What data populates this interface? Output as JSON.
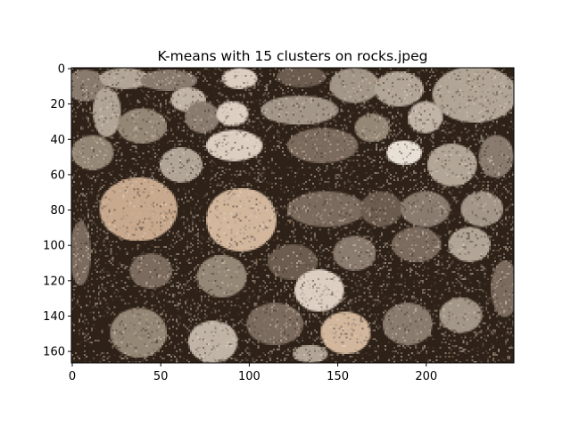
{
  "chart_data": {
    "type": "heatmap",
    "title": "K-means with 15 clusters on rocks.jpeg",
    "xlabel": "",
    "ylabel": "",
    "image_width": 250,
    "image_height": 167,
    "xlim": [
      -0.5,
      249.5
    ],
    "ylim": [
      166.5,
      -0.5
    ],
    "x_ticks": [
      0,
      50,
      100,
      150,
      200
    ],
    "x_tick_labels": [
      "0",
      "50",
      "100",
      "150",
      "200"
    ],
    "y_ticks": [
      0,
      20,
      40,
      60,
      80,
      100,
      120,
      140,
      160
    ],
    "y_tick_labels": [
      "0",
      "20",
      "40",
      "60",
      "80",
      "100",
      "120",
      "140",
      "160"
    ],
    "grid": false,
    "n_clusters": 15,
    "palette": [
      "#2e2218",
      "#3e3128",
      "#4d4034",
      "#5e5145",
      "#6c5c4f",
      "#7b6b5e",
      "#8a7b6f",
      "#948776",
      "#a29688",
      "#b0a596",
      "#bfb4a6",
      "#c9a98e",
      "#d3b79d",
      "#dccfc2",
      "#e8e0d6"
    ],
    "background_index": 0,
    "regions": [
      {
        "name": "rock-top-left",
        "cx": 8,
        "cy": 10,
        "rx": 12,
        "ry": 9,
        "c": 6
      },
      {
        "name": "rock-top-1",
        "cx": 30,
        "cy": 6,
        "rx": 14,
        "ry": 6,
        "c": 9
      },
      {
        "name": "rock-top-2",
        "cx": 55,
        "cy": 7,
        "rx": 16,
        "ry": 6,
        "c": 6
      },
      {
        "name": "rock-top-3",
        "cx": 95,
        "cy": 6,
        "rx": 10,
        "ry": 6,
        "c": 13
      },
      {
        "name": "rock-top-4",
        "cx": 130,
        "cy": 5,
        "rx": 14,
        "ry": 6,
        "c": 4
      },
      {
        "name": "rock-top-5",
        "cx": 160,
        "cy": 10,
        "rx": 14,
        "ry": 10,
        "c": 8
      },
      {
        "name": "rock-top-6",
        "cx": 185,
        "cy": 12,
        "rx": 14,
        "ry": 10,
        "c": 9
      },
      {
        "name": "rock-top-right",
        "cx": 228,
        "cy": 15,
        "rx": 24,
        "ry": 16,
        "c": 9
      },
      {
        "name": "rock-left-long",
        "cx": 20,
        "cy": 25,
        "rx": 8,
        "ry": 14,
        "c": 9
      },
      {
        "name": "rock-l-1",
        "cx": 40,
        "cy": 33,
        "rx": 14,
        "ry": 10,
        "c": 7
      },
      {
        "name": "rock-l-2",
        "cx": 66,
        "cy": 18,
        "rx": 10,
        "ry": 7,
        "c": 10
      },
      {
        "name": "rock-l-3",
        "cx": 74,
        "cy": 28,
        "rx": 10,
        "ry": 9,
        "c": 6
      },
      {
        "name": "rock-light-1",
        "cx": 91,
        "cy": 26,
        "rx": 9,
        "ry": 7,
        "c": 13
      },
      {
        "name": "rock-mid-1",
        "cx": 129,
        "cy": 24,
        "rx": 22,
        "ry": 8,
        "c": 8
      },
      {
        "name": "rock-light-2",
        "cx": 92,
        "cy": 44,
        "rx": 16,
        "ry": 9,
        "c": 13
      },
      {
        "name": "rock-mid-2",
        "cx": 142,
        "cy": 44,
        "rx": 20,
        "ry": 10,
        "c": 5
      },
      {
        "name": "rock-left-lower",
        "cx": 12,
        "cy": 48,
        "rx": 12,
        "ry": 10,
        "c": 7
      },
      {
        "name": "rock-l-4",
        "cx": 62,
        "cy": 55,
        "rx": 12,
        "ry": 10,
        "c": 9
      },
      {
        "name": "rock-r-1",
        "cx": 170,
        "cy": 34,
        "rx": 10,
        "ry": 8,
        "c": 7
      },
      {
        "name": "rock-r-2",
        "cx": 200,
        "cy": 28,
        "rx": 10,
        "ry": 9,
        "c": 10
      },
      {
        "name": "rock-r-3",
        "cx": 188,
        "cy": 48,
        "rx": 10,
        "ry": 7,
        "c": 14
      },
      {
        "name": "rock-r-4",
        "cx": 215,
        "cy": 55,
        "rx": 14,
        "ry": 12,
        "c": 9
      },
      {
        "name": "rock-r-5",
        "cx": 240,
        "cy": 50,
        "rx": 10,
        "ry": 12,
        "c": 6
      },
      {
        "name": "rock-big-tan",
        "cx": 38,
        "cy": 80,
        "rx": 22,
        "ry": 18,
        "c": 11
      },
      {
        "name": "rock-big-tan-2",
        "cx": 96,
        "cy": 86,
        "rx": 20,
        "ry": 18,
        "c": 12
      },
      {
        "name": "rock-center-oval",
        "cx": 144,
        "cy": 80,
        "rx": 22,
        "ry": 10,
        "c": 5
      },
      {
        "name": "rock-r-6",
        "cx": 175,
        "cy": 80,
        "rx": 12,
        "ry": 10,
        "c": 4
      },
      {
        "name": "rock-r-7",
        "cx": 200,
        "cy": 80,
        "rx": 14,
        "ry": 10,
        "c": 6
      },
      {
        "name": "rock-r-8",
        "cx": 232,
        "cy": 80,
        "rx": 12,
        "ry": 10,
        "c": 8
      },
      {
        "name": "rock-left-edge",
        "cx": 5,
        "cy": 105,
        "rx": 6,
        "ry": 18,
        "c": 5
      },
      {
        "name": "rock-lower-1",
        "cx": 45,
        "cy": 115,
        "rx": 12,
        "ry": 10,
        "c": 5
      },
      {
        "name": "rock-lower-2",
        "cx": 85,
        "cy": 118,
        "rx": 14,
        "ry": 12,
        "c": 7
      },
      {
        "name": "rock-lower-3",
        "cx": 125,
        "cy": 110,
        "rx": 14,
        "ry": 10,
        "c": 4
      },
      {
        "name": "rock-lower-4",
        "cx": 160,
        "cy": 105,
        "rx": 12,
        "ry": 10,
        "c": 6
      },
      {
        "name": "rock-lower-5",
        "cx": 195,
        "cy": 100,
        "rx": 14,
        "ry": 10,
        "c": 5
      },
      {
        "name": "rock-lower-6",
        "cx": 225,
        "cy": 100,
        "rx": 12,
        "ry": 10,
        "c": 9
      },
      {
        "name": "rock-light-3",
        "cx": 140,
        "cy": 126,
        "rx": 14,
        "ry": 12,
        "c": 13
      },
      {
        "name": "rock-bottom-1",
        "cx": 38,
        "cy": 150,
        "rx": 16,
        "ry": 14,
        "c": 7
      },
      {
        "name": "rock-bottom-2",
        "cx": 80,
        "cy": 155,
        "rx": 14,
        "ry": 12,
        "c": 10
      },
      {
        "name": "rock-bottom-3",
        "cx": 115,
        "cy": 145,
        "rx": 16,
        "ry": 12,
        "c": 5
      },
      {
        "name": "rock-bottom-4",
        "cx": 155,
        "cy": 150,
        "rx": 14,
        "ry": 12,
        "c": 12
      },
      {
        "name": "rock-bottom-5",
        "cx": 190,
        "cy": 145,
        "rx": 14,
        "ry": 12,
        "c": 6
      },
      {
        "name": "rock-bottom-6",
        "cx": 220,
        "cy": 140,
        "rx": 12,
        "ry": 10,
        "c": 8
      },
      {
        "name": "rock-right-edge",
        "cx": 245,
        "cy": 125,
        "rx": 8,
        "ry": 16,
        "c": 5
      },
      {
        "name": "rock-bottom-edge",
        "cx": 135,
        "cy": 162,
        "rx": 10,
        "ry": 5,
        "c": 9
      }
    ]
  }
}
